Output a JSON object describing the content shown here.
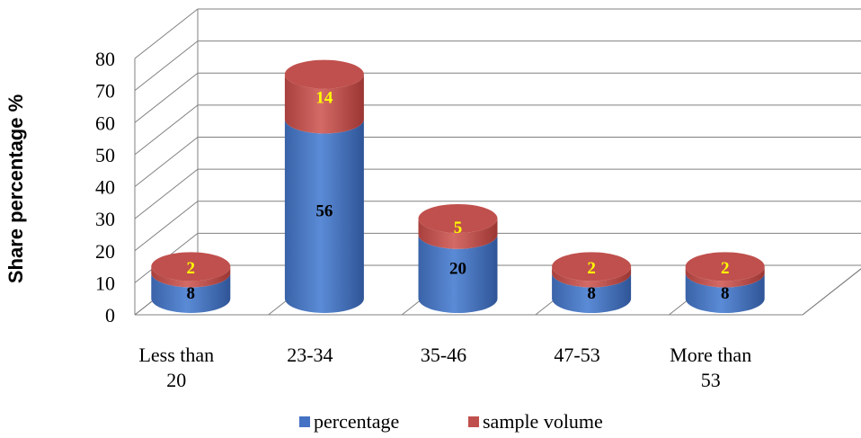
{
  "chart_data": {
    "type": "bar",
    "stacked": true,
    "style": "3d-cylinder",
    "categories": [
      [
        "Less than",
        "20"
      ],
      [
        "23-34"
      ],
      [
        "35-46"
      ],
      [
        "47-53"
      ],
      [
        "More than",
        "53"
      ]
    ],
    "series": [
      {
        "name": "percentage",
        "values": [
          8,
          56,
          20,
          8,
          8
        ],
        "color": "#4472c4"
      },
      {
        "name": "sample volume",
        "values": [
          2,
          14,
          5,
          2,
          2
        ],
        "color": "#c0504d"
      }
    ],
    "ylabel": "Share  percentage %",
    "ylim": [
      0,
      80
    ],
    "yticks": [
      0,
      10,
      20,
      30,
      40,
      50,
      60,
      70,
      80
    ],
    "grid": true,
    "legend": "bottom"
  }
}
